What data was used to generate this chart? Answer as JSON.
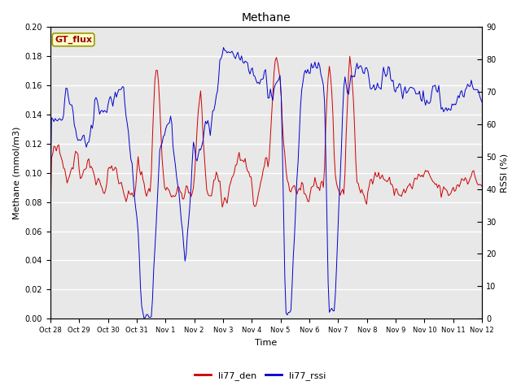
{
  "title": "Methane",
  "ylabel_left": "Methane (mmol/m3)",
  "ylabel_right": "RSSI (%)",
  "xlabel": "Time",
  "ylim_left": [
    0.0,
    0.2
  ],
  "ylim_right": [
    0,
    90
  ],
  "yticks_left": [
    0.0,
    0.02,
    0.04,
    0.06,
    0.08,
    0.1,
    0.12,
    0.14,
    0.16,
    0.18,
    0.2
  ],
  "yticks_right": [
    0,
    10,
    20,
    30,
    40,
    50,
    60,
    70,
    80,
    90
  ],
  "xtick_labels": [
    "Oct 28",
    "Oct 29",
    "Oct 30",
    "Oct 31",
    "Nov 1",
    "Nov 2",
    "Nov 3",
    "Nov 4",
    "Nov 5",
    "Nov 6",
    "Nov 7",
    "Nov 8",
    "Nov 9",
    "Nov 10",
    "Nov 11",
    "Nov 12"
  ],
  "color_red": "#cc0000",
  "color_blue": "#0000cc",
  "bg_color": "#e8e8e8",
  "gt_flux_bg": "#ffffcc",
  "gt_flux_border": "#999900",
  "gt_flux_text_color": "#990000",
  "legend_label_red": "li77_den",
  "legend_label_blue": "li77_rssi",
  "gt_flux_label": "GT_flux",
  "title_fontsize": 10,
  "axis_label_fontsize": 8,
  "tick_fontsize": 7,
  "legend_fontsize": 8
}
